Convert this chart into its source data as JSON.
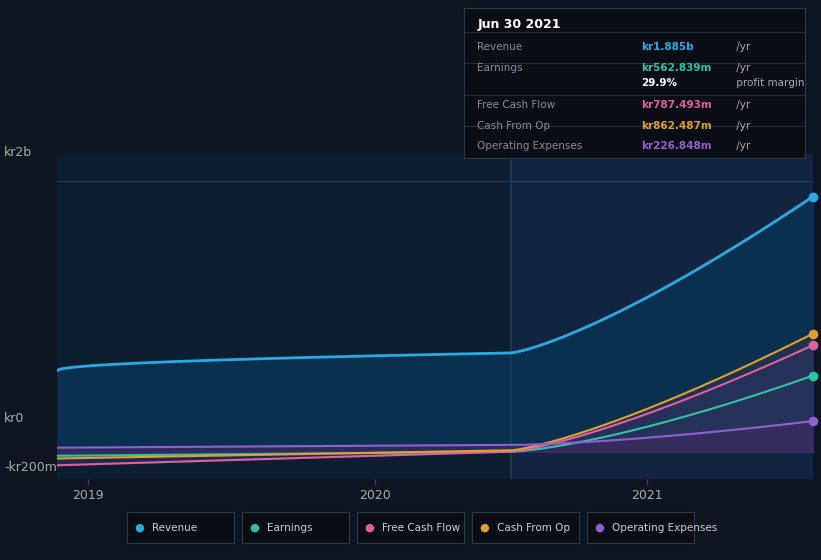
{
  "bg_color": "#0d1520",
  "chart_bg_left": "#0d1e30",
  "chart_bg_right": "#102035",
  "title": "Jun 30 2021",
  "legend_items": [
    {
      "label": "Revenue",
      "color": "#29aae2"
    },
    {
      "label": "Earnings",
      "color": "#2ec4a5"
    },
    {
      "label": "Free Cash Flow",
      "color": "#e05fa0"
    },
    {
      "label": "Cash From Op",
      "color": "#e0a030"
    },
    {
      "label": "Operating Expenses",
      "color": "#9060d0"
    }
  ],
  "tooltip_rows": [
    {
      "label": "Revenue",
      "value": "kr1.885b",
      "unit": " /yr",
      "val_color": "#29aae2"
    },
    {
      "label": "Earnings",
      "value": "kr562.839m",
      "unit": " /yr",
      "val_color": "#2ec4a5"
    },
    {
      "label": "",
      "value": "29.9%",
      "unit": " profit margin",
      "val_color": "#ffffff"
    },
    {
      "label": "Free Cash Flow",
      "value": "kr787.493m",
      "unit": " /yr",
      "val_color": "#e05fa0"
    },
    {
      "label": "Cash From Op",
      "value": "kr862.487m",
      "unit": " /yr",
      "val_color": "#e0a030"
    },
    {
      "label": "Operating Expenses",
      "value": "kr226.848m",
      "unit": " /yr",
      "val_color": "#9060d0"
    }
  ]
}
